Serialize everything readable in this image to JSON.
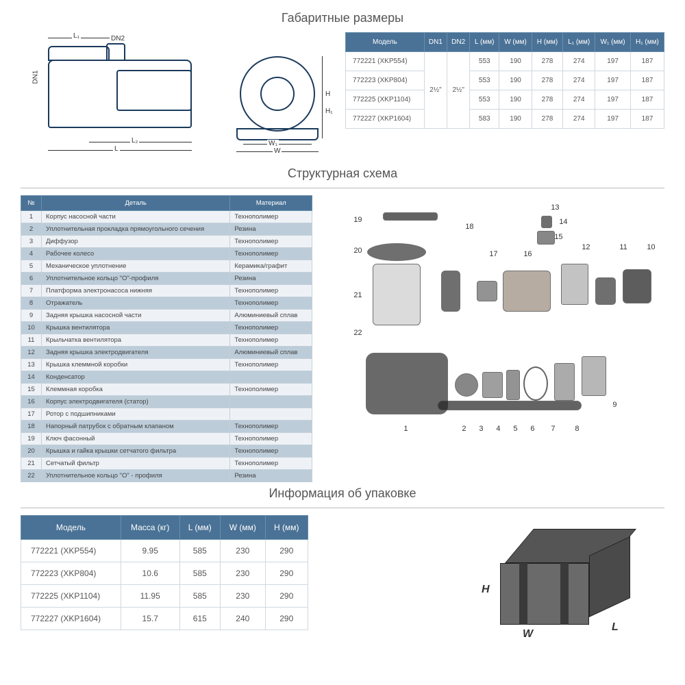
{
  "sections": {
    "dimensions": "Габаритные размеры",
    "structure": "Структурная схема",
    "packaging": "Информация об упаковке"
  },
  "dimLabels": {
    "L": "L",
    "L1": "L₁",
    "L2": "L₂",
    "DN1": "DN1",
    "DN2": "DN2",
    "H": "H",
    "H1": "H₁",
    "W": "W",
    "W1": "W₁"
  },
  "dimTable": {
    "headers": [
      "Модель",
      "DN1",
      "DN2",
      "L (мм)",
      "W (мм)",
      "H (мм)",
      "L₁ (мм)",
      "W₁ (мм)",
      "H₁ (мм)"
    ],
    "dn1": "2½\"",
    "dn2": "2½\"",
    "rows": [
      {
        "model": "772221 (XKP554)",
        "L": "553",
        "W": "190",
        "H": "278",
        "L1": "274",
        "W1": "197",
        "H1": "187"
      },
      {
        "model": "772223 (XKP804)",
        "L": "553",
        "W": "190",
        "H": "278",
        "L1": "274",
        "W1": "197",
        "H1": "187"
      },
      {
        "model": "772225 (XKP1104)",
        "L": "553",
        "W": "190",
        "H": "278",
        "L1": "274",
        "W1": "197",
        "H1": "187"
      },
      {
        "model": "772227 (XKP1604)",
        "L": "583",
        "W": "190",
        "H": "278",
        "L1": "274",
        "W1": "197",
        "H1": "187"
      }
    ]
  },
  "partsTable": {
    "headers": [
      "№",
      "Деталь",
      "Материал"
    ],
    "rows": [
      {
        "n": "1",
        "d": "Корпус насосной части",
        "m": "Технополимер"
      },
      {
        "n": "2",
        "d": "Уплотнительная прокладка прямоугольного сечения",
        "m": "Резина"
      },
      {
        "n": "3",
        "d": "Диффузор",
        "m": "Технополимер"
      },
      {
        "n": "4",
        "d": "Рабочее колесо",
        "m": "Технополимер"
      },
      {
        "n": "5",
        "d": "Механическое уплотнение",
        "m": "Керамика/графит"
      },
      {
        "n": "6",
        "d": "Уплотнительное кольцо \"О\"-профиля",
        "m": "Резина"
      },
      {
        "n": "7",
        "d": "Платформа электронасоса нижняя",
        "m": "Технополимер"
      },
      {
        "n": "8",
        "d": "Отражатель",
        "m": "Технополимер"
      },
      {
        "n": "9",
        "d": "Задняя крышка насосной части",
        "m": "Алюминиевый сплав"
      },
      {
        "n": "10",
        "d": "Крышка вентилятора",
        "m": "Технополимер"
      },
      {
        "n": "11",
        "d": "Крыльчатка вентилятора",
        "m": "Технополимер"
      },
      {
        "n": "12",
        "d": "Задняя крышка электродвигателя",
        "m": "Алюминиевый сплав"
      },
      {
        "n": "13",
        "d": "Крышка клеммной коробки",
        "m": "Технополимер"
      },
      {
        "n": "14",
        "d": "Конденсатор",
        "m": ""
      },
      {
        "n": "15",
        "d": "Клеммная коробка",
        "m": "Технополимер"
      },
      {
        "n": "16",
        "d": "Корпус электродвигателя (статор)",
        "m": ""
      },
      {
        "n": "17",
        "d": "Ротор с подшипниками",
        "m": ""
      },
      {
        "n": "18",
        "d": "Напорный патрубок с обратным клапаном",
        "m": "Технополимер"
      },
      {
        "n": "19",
        "d": "Ключ фасонный",
        "m": "Технополимер"
      },
      {
        "n": "20",
        "d": "Крышка и гайка крышки сетчатого фильтра",
        "m": "Технополимер"
      },
      {
        "n": "21",
        "d": "Сетчатый фильтр",
        "m": "Технополимер"
      },
      {
        "n": "22",
        "d": "Уплотнительное кольцо \"О\" - профиля",
        "m": "Резина"
      }
    ]
  },
  "explodedLabels": [
    "1",
    "2",
    "3",
    "4",
    "5",
    "6",
    "7",
    "8",
    "9",
    "10",
    "11",
    "12",
    "13",
    "14",
    "15",
    "16",
    "17",
    "18",
    "19",
    "20",
    "21",
    "22"
  ],
  "pkgTable": {
    "headers": [
      "Модель",
      "Масса (кг)",
      "L (мм)",
      "W (мм)",
      "H (мм)"
    ],
    "rows": [
      {
        "model": "772221 (XKP554)",
        "mass": "9.95",
        "L": "585",
        "W": "230",
        "H": "290"
      },
      {
        "model": "772223 (XKP804)",
        "mass": "10.6",
        "L": "585",
        "W": "230",
        "H": "290"
      },
      {
        "model": "772225 (XKP1104)",
        "mass": "11.95",
        "L": "585",
        "W": "230",
        "H": "290"
      },
      {
        "model": "772227 (XKP1604)",
        "mass": "15.7",
        "L": "615",
        "W": "240",
        "H": "290"
      }
    ]
  },
  "boxLabels": {
    "H": "H",
    "W": "W",
    "L": "L"
  },
  "colors": {
    "headerBg": "#4a7296",
    "headerBorder": "#6a8fae",
    "rowOdd": "#eef2f6",
    "rowEven": "#bcccd9",
    "cellBorder": "#cfd8df",
    "diagramStroke": "#1a3a5c",
    "text": "#555"
  }
}
